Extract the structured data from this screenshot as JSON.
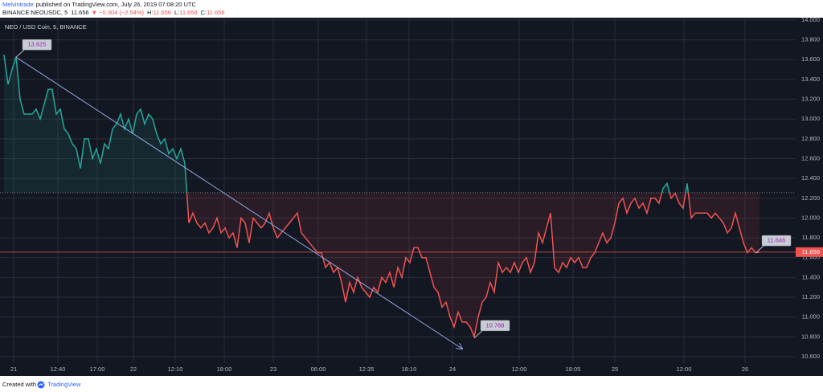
{
  "chart_data": {
    "type": "baseline",
    "publisher": "Melvintrade",
    "published_text": "published on TradingView.com, July 26, 2019 07:08:20 UTC",
    "symbol": "BINANCE:NEOUSDC, 5",
    "price": "11.656",
    "change": "▼ −0.304 (−2.54%)",
    "ohlc": [
      {
        "label": "H:",
        "value": "11.656"
      },
      {
        "label": "L:",
        "value": "11.656"
      },
      {
        "label": "C:",
        "value": "11.656"
      }
    ],
    "title": "NEO / USD Coin, 5, BINANCE",
    "footer": "Created with",
    "footer_brand": "TradingView",
    "up_color": "#26a69a",
    "down_color": "#ef5350",
    "baseline": 12.256,
    "last_price": 11.656,
    "grid": true,
    "xlim": [
      -1,
      197
    ],
    "ylim": [
      10.535,
      14.024
    ],
    "xticks": [
      {
        "value": 2.4,
        "label": "21"
      },
      {
        "value": 13.4,
        "label": "12:40"
      },
      {
        "value": 23.2,
        "label": "17:00"
      },
      {
        "value": 32.2,
        "label": "22"
      },
      {
        "value": 42.6,
        "label": "12:10"
      },
      {
        "value": 54.8,
        "label": "18:00"
      },
      {
        "value": 67,
        "label": "23"
      },
      {
        "value": 78.2,
        "label": "06:00"
      },
      {
        "value": 90.2,
        "label": "12:35"
      },
      {
        "value": 100.8,
        "label": "18:10"
      },
      {
        "value": 111.6,
        "label": "24"
      },
      {
        "value": 128.2,
        "label": "12:00"
      },
      {
        "value": 141.6,
        "label": "18:05"
      },
      {
        "value": 152,
        "label": "25"
      },
      {
        "value": 169.2,
        "label": "12:00"
      },
      {
        "value": 184.4,
        "label": "26"
      }
    ],
    "yticks": [
      {
        "value": 14,
        "label": "14.000"
      },
      {
        "value": 13.8,
        "label": "13.800"
      },
      {
        "value": 13.6,
        "label": "13.600"
      },
      {
        "value": 13.4,
        "label": "13.400"
      },
      {
        "value": 13.2,
        "label": "13.200"
      },
      {
        "value": 13,
        "label": "13.000"
      },
      {
        "value": 12.8,
        "label": "12.800"
      },
      {
        "value": 12.6,
        "label": "12.600"
      },
      {
        "value": 12.4,
        "label": "12.400"
      },
      {
        "value": 12.2,
        "label": "12.200"
      },
      {
        "value": 12,
        "label": "12.000"
      },
      {
        "value": 11.8,
        "label": "11.800"
      },
      {
        "value": 11.6,
        "label": "11.600"
      },
      {
        "value": 11.4,
        "label": "11.400"
      },
      {
        "value": 11.2,
        "label": "11.200"
      },
      {
        "value": 11,
        "label": "11.000"
      },
      {
        "value": 10.8,
        "label": "10.800"
      },
      {
        "value": 10.6,
        "label": "10.600"
      }
    ],
    "values": [
      13.65,
      13.35,
      13.5,
      13.63,
      13.2,
      13.05,
      13.05,
      13.05,
      13.1,
      13.0,
      13.15,
      13.3,
      13.3,
      13.05,
      13.1,
      12.9,
      12.85,
      12.75,
      12.7,
      12.5,
      12.8,
      12.8,
      12.6,
      12.7,
      12.55,
      12.75,
      12.7,
      12.9,
      12.95,
      13.05,
      12.9,
      13.0,
      12.85,
      13.05,
      13.1,
      12.95,
      13.05,
      13.0,
      12.85,
      12.75,
      12.8,
      12.65,
      12.7,
      12.6,
      12.7,
      12.55,
      11.95,
      12.05,
      11.95,
      11.9,
      11.95,
      11.85,
      11.9,
      12.0,
      11.85,
      11.9,
      11.8,
      11.85,
      11.7,
      12.0,
      11.95,
      11.75,
      12.0,
      11.95,
      11.9,
      11.95,
      12.05,
      11.9,
      11.8,
      11.85,
      11.9,
      11.95,
      12.0,
      12.05,
      11.85,
      11.8,
      11.75,
      11.7,
      11.65,
      11.65,
      11.5,
      11.55,
      11.45,
      11.5,
      11.35,
      11.15,
      11.35,
      11.25,
      11.4,
      11.3,
      11.25,
      11.2,
      11.3,
      11.25,
      11.4,
      11.35,
      11.45,
      11.3,
      11.5,
      11.4,
      11.6,
      11.55,
      11.7,
      11.7,
      11.6,
      11.6,
      11.45,
      11.3,
      11.25,
      11.1,
      11.15,
      11.0,
      10.9,
      11.05,
      10.95,
      10.95,
      10.9,
      10.8,
      11.0,
      11.15,
      11.2,
      11.35,
      11.25,
      11.55,
      11.45,
      11.5,
      11.45,
      11.55,
      11.45,
      11.55,
      11.6,
      11.45,
      11.55,
      11.85,
      11.75,
      11.9,
      12.05,
      11.5,
      11.45,
      11.55,
      11.5,
      11.6,
      11.55,
      11.6,
      11.5,
      11.5,
      11.6,
      11.65,
      11.75,
      11.85,
      11.75,
      11.8,
      11.95,
      12.15,
      12.2,
      12.05,
      12.15,
      12.2,
      12.1,
      12.15,
      12.05,
      12.2,
      12.2,
      12.15,
      12.3,
      12.35,
      12.2,
      12.25,
      12.15,
      12.1,
      12.35,
      12.0,
      12.05,
      12.05,
      12.05,
      12.05,
      12.0,
      12.05,
      12.0,
      11.95,
      11.85,
      11.9,
      12.05,
      11.9,
      11.75,
      11.65,
      11.7,
      11.65,
      11.656
    ],
    "trend_line": {
      "x": [
        3,
        114
      ],
      "y": [
        13.625,
        10.68
      ]
    },
    "annotations": [
      {
        "label": "13.625",
        "value": 13.625,
        "x": 3
      },
      {
        "label": "10.788",
        "value": 10.788,
        "x": 117
      },
      {
        "label": "11.646",
        "value": 11.646,
        "x": 187
      }
    ]
  }
}
